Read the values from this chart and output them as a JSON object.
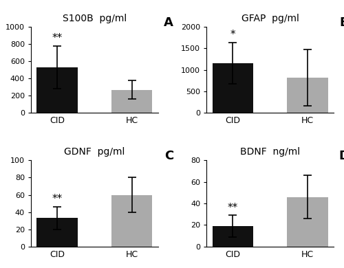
{
  "panels": [
    {
      "label": "A",
      "title": "S100B  pg/ml",
      "categories": [
        "CID",
        "HC"
      ],
      "values": [
        530,
        270
      ],
      "errors": [
        250,
        110
      ],
      "ylim": [
        0,
        1000
      ],
      "yticks": [
        0,
        200,
        400,
        600,
        800,
        1000
      ],
      "significance": "**",
      "sig_on": 0
    },
    {
      "label": "B",
      "title": "GFAP  pg/ml",
      "categories": [
        "CID",
        "HC"
      ],
      "values": [
        1150,
        820
      ],
      "errors": [
        480,
        650
      ],
      "ylim": [
        0,
        2000
      ],
      "yticks": [
        0,
        500,
        1000,
        1500,
        2000
      ],
      "significance": "*",
      "sig_on": 0
    },
    {
      "label": "C",
      "title": "GDNF  pg/ml",
      "categories": [
        "CID",
        "HC"
      ],
      "values": [
        33,
        60
      ],
      "errors": [
        13,
        20
      ],
      "ylim": [
        0,
        100
      ],
      "yticks": [
        0,
        20,
        40,
        60,
        80,
        100
      ],
      "significance": "**",
      "sig_on": 0
    },
    {
      "label": "D",
      "title": "BDNF  ng/ml",
      "categories": [
        "CID",
        "HC"
      ],
      "values": [
        19,
        46
      ],
      "errors": [
        10,
        20
      ],
      "ylim": [
        0,
        80
      ],
      "yticks": [
        0,
        20,
        40,
        60,
        80
      ],
      "significance": "**",
      "sig_on": 0
    }
  ],
  "bar_colors": [
    "#111111",
    "#aaaaaa"
  ],
  "background_color": "#ffffff",
  "title_fontsize": 10,
  "label_fontsize": 13,
  "tick_fontsize": 8,
  "sig_fontsize": 11,
  "cat_fontsize": 9
}
